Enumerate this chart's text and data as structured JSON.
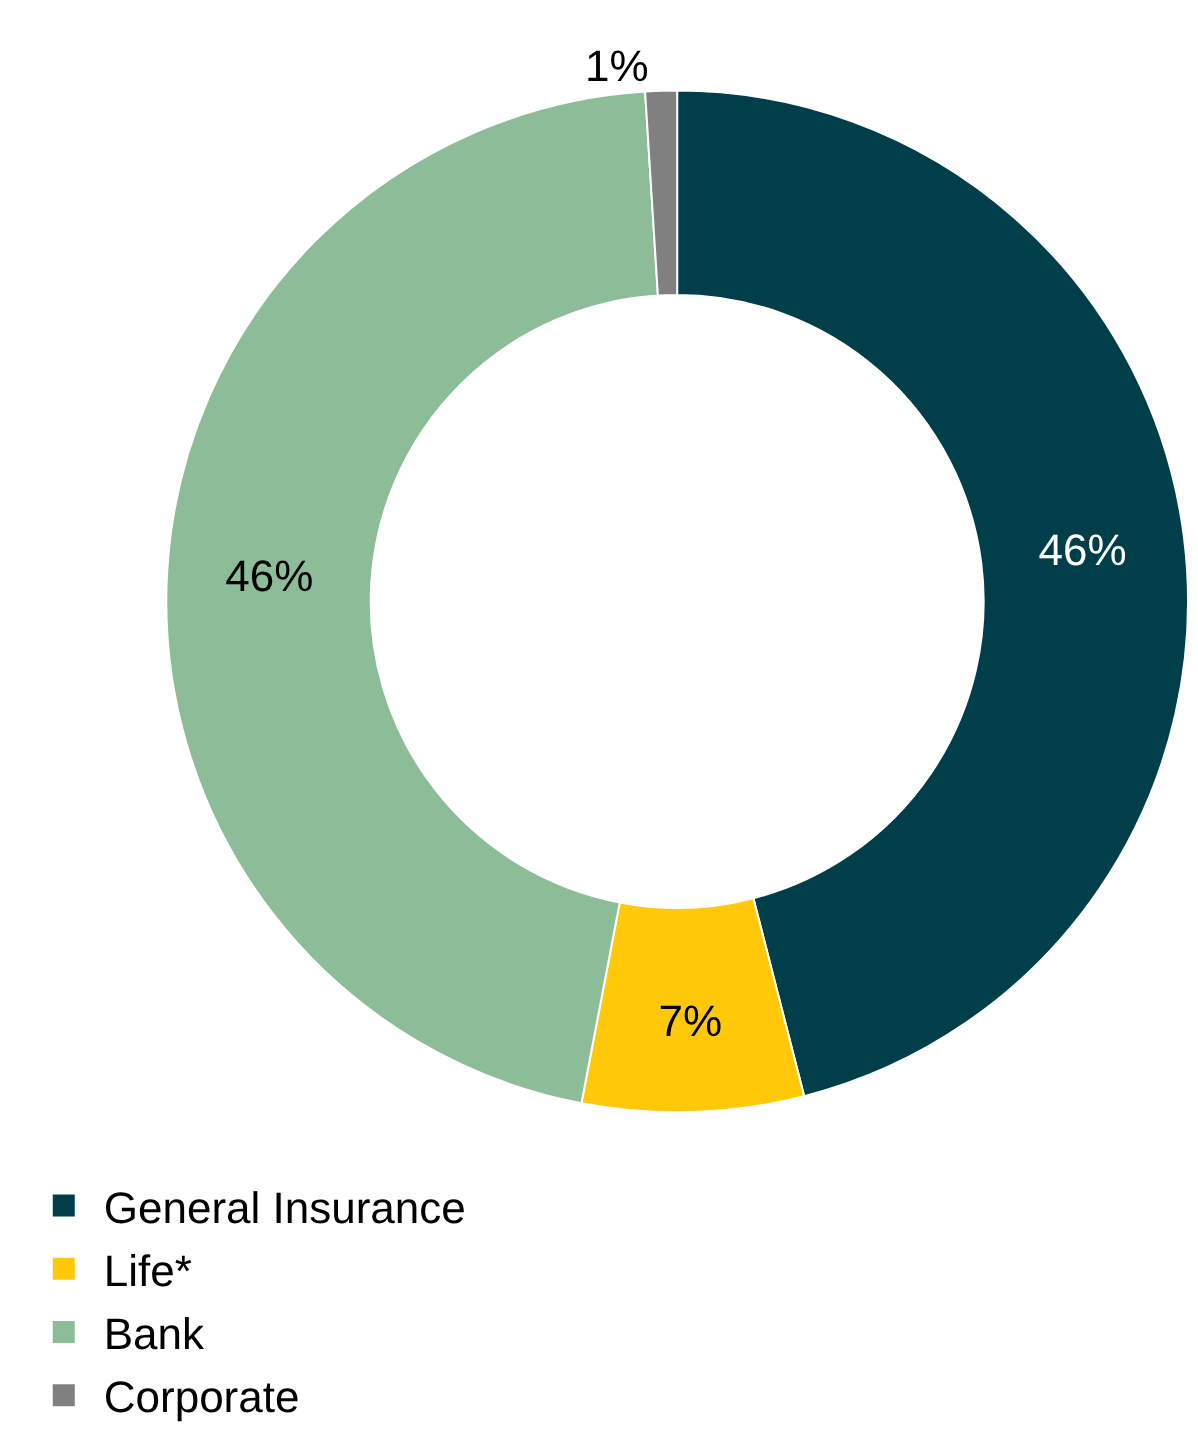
{
  "chart_data": {
    "type": "donut",
    "categories": [
      "General Insurance",
      "Life*",
      "Bank",
      "Corporate"
    ],
    "values": [
      46,
      7,
      46,
      1
    ],
    "value_labels": [
      "46%",
      "7%",
      "46%",
      "1%"
    ],
    "colors": [
      "#003f4a",
      "#ffc90a",
      "#8cbd98",
      "#808080"
    ],
    "legend": "bottom left"
  }
}
